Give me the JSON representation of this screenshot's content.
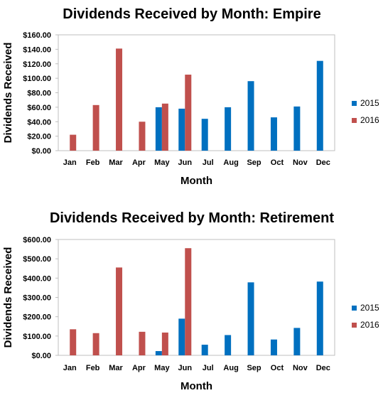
{
  "chart_data": [
    {
      "type": "bar",
      "title": "Dividends Received by Month: Empire",
      "xlabel": "Month",
      "ylabel": "Dividends Received",
      "categories": [
        "Jan",
        "Feb",
        "Mar",
        "Apr",
        "May",
        "Jun",
        "Jul",
        "Aug",
        "Sep",
        "Oct",
        "Nov",
        "Dec"
      ],
      "ylim": [
        0,
        160
      ],
      "yticks": [
        "$0.00",
        "$20.00",
        "$40.00",
        "$60.00",
        "$80.00",
        "$100.00",
        "$120.00",
        "$140.00",
        "$160.00"
      ],
      "grid": false,
      "legend_position": "right",
      "series": [
        {
          "name": "2015",
          "color": "#0070C0",
          "values": [
            null,
            null,
            null,
            null,
            60,
            58,
            44,
            60,
            96,
            46,
            61,
            124
          ]
        },
        {
          "name": "2016",
          "color": "#C0504D",
          "values": [
            22,
            63,
            141,
            40,
            65,
            105,
            null,
            null,
            null,
            null,
            null,
            null
          ]
        }
      ]
    },
    {
      "type": "bar",
      "title": "Dividends Received by Month: Retirement",
      "xlabel": "Month",
      "ylabel": "Dividends Received",
      "categories": [
        "Jan",
        "Feb",
        "Mar",
        "Apr",
        "May",
        "Jun",
        "Jul",
        "Aug",
        "Sep",
        "Oct",
        "Nov",
        "Dec"
      ],
      "ylim": [
        0,
        600
      ],
      "yticks": [
        "$0.00",
        "$100.00",
        "$200.00",
        "$300.00",
        "$400.00",
        "$500.00",
        "$600.00"
      ],
      "grid": false,
      "legend_position": "right",
      "series": [
        {
          "name": "2015",
          "color": "#0070C0",
          "values": [
            null,
            null,
            null,
            null,
            22,
            190,
            55,
            105,
            378,
            82,
            142,
            382
          ]
        },
        {
          "name": "2016",
          "color": "#C0504D",
          "values": [
            135,
            115,
            455,
            122,
            118,
            555,
            null,
            null,
            null,
            null,
            null,
            null
          ]
        }
      ]
    }
  ]
}
